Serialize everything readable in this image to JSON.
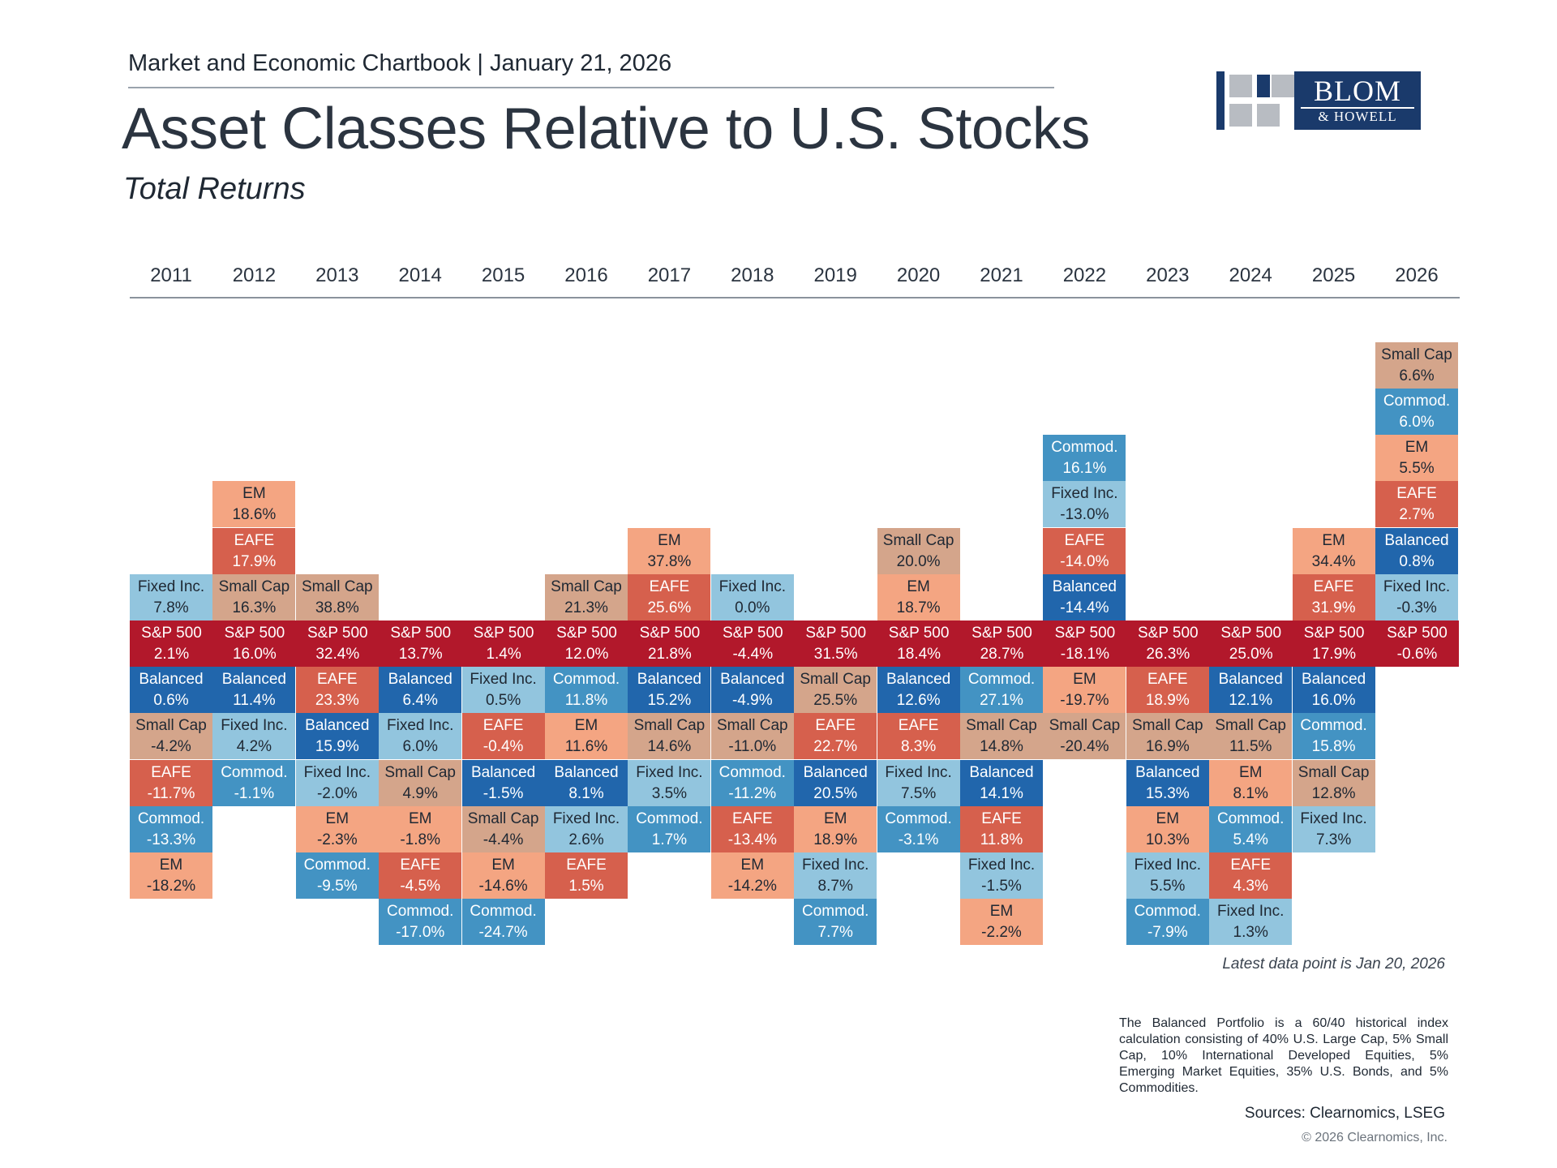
{
  "header": {
    "subtitle_line": "Market and Economic Chartbook | January 21, 2026",
    "title": "Asset Classes Relative to U.S. Stocks",
    "subtitle": "Total Returns"
  },
  "logo": {
    "line1": "BLOM",
    "line2": "& HOWELL"
  },
  "colors": {
    "S&P 500": "#b2182b",
    "EM": "#f4a582",
    "EAFE": "#d6604d",
    "Small Cap": "#d4a58b",
    "Fixed Inc.": "#92c5de",
    "Commod.": "#4393c3",
    "Balanced": "#2166ac"
  },
  "text_colors": {
    "S&P 500": "#ffffff",
    "EM": "#1f2833",
    "EAFE": "#ffffff",
    "Small Cap": "#1f2833",
    "Fixed Inc.": "#1f2833",
    "Commod.": "#ffffff",
    "Balanced": "#ffffff"
  },
  "chart_data": {
    "type": "table",
    "title": "Asset Classes Relative to U.S. Stocks",
    "subtitle": "Total Returns",
    "anchor": "S&P 500",
    "years": [
      "2011",
      "2012",
      "2013",
      "2014",
      "2015",
      "2016",
      "2017",
      "2018",
      "2019",
      "2020",
      "2021",
      "2022",
      "2023",
      "2024",
      "2025",
      "2026"
    ],
    "columns": [
      {
        "year": "2011",
        "above": [
          [
            "Fixed Inc.",
            "7.8%"
          ]
        ],
        "sp500": "2.1%",
        "below": [
          [
            "Balanced",
            "0.6%"
          ],
          [
            "Small Cap",
            "-4.2%"
          ],
          [
            "EAFE",
            "-11.7%"
          ],
          [
            "Commod.",
            "-13.3%"
          ],
          [
            "EM",
            "-18.2%"
          ]
        ]
      },
      {
        "year": "2012",
        "above": [
          [
            "Small Cap",
            "16.3%"
          ],
          [
            "EAFE",
            "17.9%"
          ],
          [
            "EM",
            "18.6%"
          ]
        ],
        "sp500": "16.0%",
        "below": [
          [
            "Balanced",
            "11.4%"
          ],
          [
            "Fixed Inc.",
            "4.2%"
          ],
          [
            "Commod.",
            "-1.1%"
          ]
        ]
      },
      {
        "year": "2013",
        "above": [
          [
            "Small Cap",
            "38.8%"
          ]
        ],
        "sp500": "32.4%",
        "below": [
          [
            "EAFE",
            "23.3%"
          ],
          [
            "Balanced",
            "15.9%"
          ],
          [
            "Fixed Inc.",
            "-2.0%"
          ],
          [
            "EM",
            "-2.3%"
          ],
          [
            "Commod.",
            "-9.5%"
          ]
        ]
      },
      {
        "year": "2014",
        "above": [],
        "sp500": "13.7%",
        "below": [
          [
            "Balanced",
            "6.4%"
          ],
          [
            "Fixed Inc.",
            "6.0%"
          ],
          [
            "Small Cap",
            "4.9%"
          ],
          [
            "EM",
            "-1.8%"
          ],
          [
            "EAFE",
            "-4.5%"
          ],
          [
            "Commod.",
            "-17.0%"
          ]
        ]
      },
      {
        "year": "2015",
        "above": [],
        "sp500": "1.4%",
        "below": [
          [
            "Fixed Inc.",
            "0.5%"
          ],
          [
            "EAFE",
            "-0.4%"
          ],
          [
            "Balanced",
            "-1.5%"
          ],
          [
            "Small Cap",
            "-4.4%"
          ],
          [
            "EM",
            "-14.6%"
          ],
          [
            "Commod.",
            "-24.7%"
          ]
        ]
      },
      {
        "year": "2016",
        "above": [
          [
            "Small Cap",
            "21.3%"
          ]
        ],
        "sp500": "12.0%",
        "below": [
          [
            "Commod.",
            "11.8%"
          ],
          [
            "EM",
            "11.6%"
          ],
          [
            "Balanced",
            "8.1%"
          ],
          [
            "Fixed Inc.",
            "2.6%"
          ],
          [
            "EAFE",
            "1.5%"
          ]
        ]
      },
      {
        "year": "2017",
        "above": [
          [
            "EAFE",
            "25.6%"
          ],
          [
            "EM",
            "37.8%"
          ]
        ],
        "sp500": "21.8%",
        "below": [
          [
            "Balanced",
            "15.2%"
          ],
          [
            "Small Cap",
            "14.6%"
          ],
          [
            "Fixed Inc.",
            "3.5%"
          ],
          [
            "Commod.",
            "1.7%"
          ]
        ]
      },
      {
        "year": "2018",
        "above": [
          [
            "Fixed Inc.",
            "0.0%"
          ]
        ],
        "sp500": "-4.4%",
        "below": [
          [
            "Balanced",
            "-4.9%"
          ],
          [
            "Small Cap",
            "-11.0%"
          ],
          [
            "Commod.",
            "-11.2%"
          ],
          [
            "EAFE",
            "-13.4%"
          ],
          [
            "EM",
            "-14.2%"
          ]
        ]
      },
      {
        "year": "2019",
        "above": [],
        "sp500": "31.5%",
        "below": [
          [
            "Small Cap",
            "25.5%"
          ],
          [
            "EAFE",
            "22.7%"
          ],
          [
            "Balanced",
            "20.5%"
          ],
          [
            "EM",
            "18.9%"
          ],
          [
            "Fixed Inc.",
            "8.7%"
          ],
          [
            "Commod.",
            "7.7%"
          ]
        ]
      },
      {
        "year": "2020",
        "above": [
          [
            "EM",
            "18.7%"
          ],
          [
            "Small Cap",
            "20.0%"
          ]
        ],
        "sp500": "18.4%",
        "below": [
          [
            "Balanced",
            "12.6%"
          ],
          [
            "EAFE",
            "8.3%"
          ],
          [
            "Fixed Inc.",
            "7.5%"
          ],
          [
            "Commod.",
            "-3.1%"
          ]
        ]
      },
      {
        "year": "2021",
        "above": [],
        "sp500": "28.7%",
        "below": [
          [
            "Commod.",
            "27.1%"
          ],
          [
            "Small Cap",
            "14.8%"
          ],
          [
            "Balanced",
            "14.1%"
          ],
          [
            "EAFE",
            "11.8%"
          ],
          [
            "Fixed Inc.",
            "-1.5%"
          ],
          [
            "EM",
            "-2.2%"
          ]
        ]
      },
      {
        "year": "2022",
        "above": [
          [
            "Balanced",
            "-14.4%"
          ],
          [
            "EAFE",
            "-14.0%"
          ],
          [
            "Fixed Inc.",
            "-13.0%"
          ],
          [
            "Commod.",
            "16.1%"
          ]
        ],
        "sp500": "-18.1%",
        "below": [
          [
            "EM",
            "-19.7%"
          ],
          [
            "Small Cap",
            "-20.4%"
          ]
        ]
      },
      {
        "year": "2023",
        "above": [],
        "sp500": "26.3%",
        "below": [
          [
            "EAFE",
            "18.9%"
          ],
          [
            "Small Cap",
            "16.9%"
          ],
          [
            "Balanced",
            "15.3%"
          ],
          [
            "EM",
            "10.3%"
          ],
          [
            "Fixed Inc.",
            "5.5%"
          ],
          [
            "Commod.",
            "-7.9%"
          ]
        ]
      },
      {
        "year": "2024",
        "above": [],
        "sp500": "25.0%",
        "below": [
          [
            "Balanced",
            "12.1%"
          ],
          [
            "Small Cap",
            "11.5%"
          ],
          [
            "EM",
            "8.1%"
          ],
          [
            "Commod.",
            "5.4%"
          ],
          [
            "EAFE",
            "4.3%"
          ],
          [
            "Fixed Inc.",
            "1.3%"
          ]
        ]
      },
      {
        "year": "2025",
        "above": [
          [
            "EAFE",
            "31.9%"
          ],
          [
            "EM",
            "34.4%"
          ]
        ],
        "sp500": "17.9%",
        "below": [
          [
            "Balanced",
            "16.0%"
          ],
          [
            "Commod.",
            "15.8%"
          ],
          [
            "Small Cap",
            "12.8%"
          ],
          [
            "Fixed Inc.",
            "7.3%"
          ]
        ]
      },
      {
        "year": "2026",
        "above": [
          [
            "Fixed Inc.",
            "-0.3%"
          ],
          [
            "Balanced",
            "0.8%"
          ],
          [
            "EAFE",
            "2.7%"
          ],
          [
            "EM",
            "5.5%"
          ],
          [
            "Commod.",
            "6.0%"
          ],
          [
            "Small Cap",
            "6.6%"
          ]
        ],
        "sp500": "-0.6%",
        "below": []
      }
    ]
  },
  "notes": {
    "latest": "Latest data point is Jan 20, 2026",
    "balanced": "The Balanced Portfolio is a 60/40 historical index calculation consisting of 40% U.S. Large Cap, 5% Small Cap, 10% International Developed Equities, 5% Emerging Market Equities, 35% U.S. Bonds, and 5% Commodities.",
    "sources": "Sources: Clearnomics, LSEG",
    "copyright": "© 2026 Clearnomics, Inc."
  }
}
